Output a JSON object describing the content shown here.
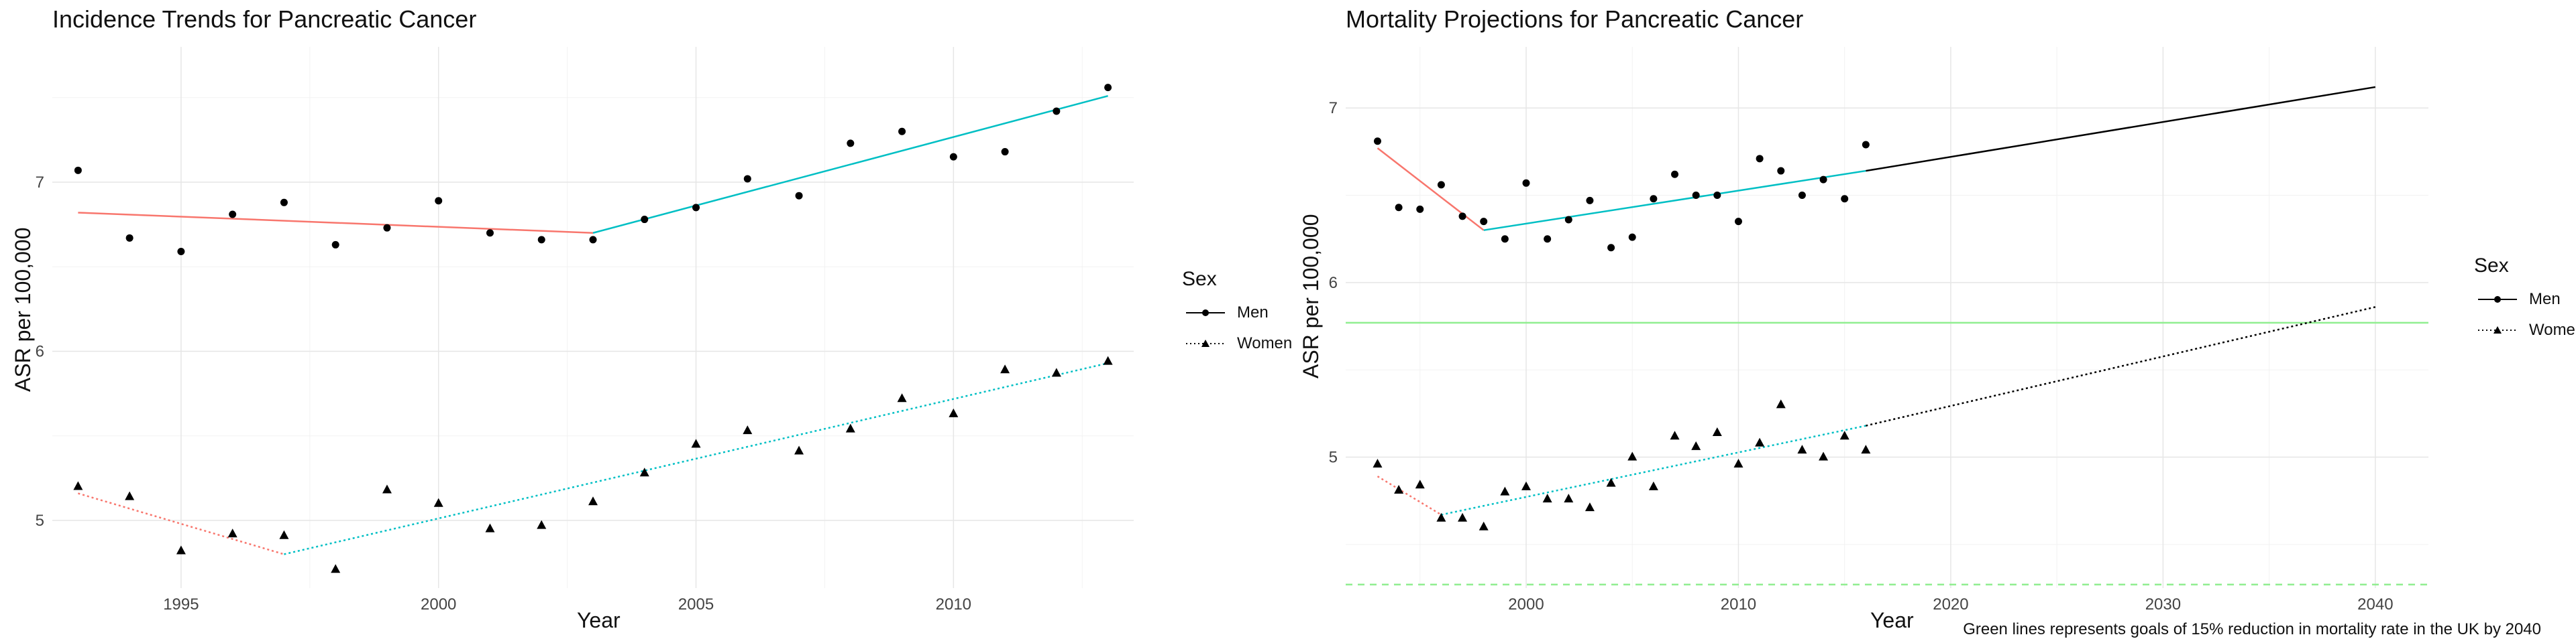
{
  "left": {
    "chart_data": {
      "type": "line",
      "title": "Incidence Trends for Pancreatic Cancer",
      "xlabel": "Year",
      "ylabel": "ASR per 100,000",
      "xlim": [
        1992.5,
        2013.5
      ],
      "ylim": [
        4.6,
        7.8
      ],
      "xticks": [
        1995,
        2000,
        2005,
        2010
      ],
      "yticks": [
        5,
        6,
        7
      ],
      "legend": {
        "title": "Sex",
        "placement": "right",
        "entries": [
          {
            "label": "Men",
            "marker": "circle",
            "dash": "solid"
          },
          {
            "label": "Women",
            "marker": "triangle",
            "dash": "dotted"
          }
        ]
      },
      "series": [
        {
          "name": "Men",
          "marker": "circle",
          "x": [
            1993,
            1994,
            1995,
            1996,
            1997,
            1998,
            1999,
            2000,
            2001,
            2002,
            2003,
            2004,
            2005,
            2006,
            2007,
            2008,
            2009,
            2010,
            2011,
            2012,
            2013
          ],
          "y": [
            7.07,
            6.67,
            6.59,
            6.81,
            6.88,
            6.63,
            6.73,
            6.89,
            6.7,
            6.66,
            6.66,
            6.78,
            6.85,
            7.02,
            6.92,
            7.23,
            7.3,
            7.15,
            7.18,
            7.42,
            7.56
          ]
        },
        {
          "name": "Women",
          "marker": "triangle",
          "x": [
            1993,
            1994,
            1995,
            1996,
            1997,
            1998,
            1999,
            2000,
            2001,
            2002,
            2003,
            2004,
            2005,
            2006,
            2007,
            2008,
            2009,
            2010,
            2011,
            2012,
            2013
          ],
          "y": [
            5.2,
            5.14,
            4.82,
            4.92,
            4.91,
            4.71,
            5.18,
            5.1,
            4.95,
            4.97,
            5.11,
            5.28,
            5.45,
            5.53,
            5.41,
            5.54,
            5.72,
            5.63,
            5.89,
            5.87,
            5.94
          ]
        }
      ],
      "trend_lines": [
        {
          "color": "#F8766D",
          "dash": "solid",
          "x": [
            1993,
            2003
          ],
          "y": [
            6.82,
            6.7
          ]
        },
        {
          "color": "#00BFC4",
          "dash": "solid",
          "x": [
            2003,
            2013
          ],
          "y": [
            6.7,
            7.51
          ]
        },
        {
          "color": "#F8766D",
          "dash": "dotted",
          "x": [
            1993,
            1997
          ],
          "y": [
            5.16,
            4.8
          ]
        },
        {
          "color": "#00BFC4",
          "dash": "dotted",
          "x": [
            1997,
            2013
          ],
          "y": [
            4.8,
            5.93
          ]
        }
      ]
    }
  },
  "right": {
    "chart_data": {
      "type": "line",
      "title": "Mortality Projections for Pancreatic Cancer",
      "xlabel": "Year",
      "ylabel": "ASR per 100,000",
      "xlim": [
        1991.5,
        2042.5
      ],
      "ylim": [
        4.25,
        7.35
      ],
      "xticks": [
        2000,
        2010,
        2020,
        2030,
        2040
      ],
      "yticks": [
        5,
        6,
        7
      ],
      "caption": "Green lines represents goals of 15% reduction in mortality rate in the UK by 2040",
      "legend": {
        "title": "Sex",
        "placement": "right",
        "entries": [
          {
            "label": "Men",
            "marker": "circle",
            "dash": "solid"
          },
          {
            "label": "Women",
            "marker": "triangle",
            "dash": "dotted"
          }
        ]
      },
      "series": [
        {
          "name": "Men",
          "marker": "circle",
          "x": [
            1993,
            1994,
            1995,
            1996,
            1997,
            1998,
            1999,
            2000,
            2001,
            2002,
            2003,
            2004,
            2005,
            2006,
            2007,
            2008,
            2009,
            2010,
            2011,
            2012,
            2013,
            2014,
            2015,
            2016
          ],
          "y": [
            6.81,
            6.43,
            6.42,
            6.56,
            6.38,
            6.35,
            6.25,
            6.57,
            6.25,
            6.36,
            6.47,
            6.2,
            6.26,
            6.48,
            6.62,
            6.5,
            6.5,
            6.35,
            6.71,
            6.64,
            6.5,
            6.59,
            6.48,
            6.79
          ]
        },
        {
          "name": "Women",
          "marker": "triangle",
          "x": [
            1993,
            1994,
            1995,
            1996,
            1997,
            1998,
            1999,
            2000,
            2001,
            2002,
            2003,
            2004,
            2005,
            2006,
            2007,
            2008,
            2009,
            2010,
            2011,
            2012,
            2013,
            2014,
            2015,
            2016
          ],
          "y": [
            4.96,
            4.81,
            4.84,
            4.65,
            4.65,
            4.6,
            4.8,
            4.83,
            4.76,
            4.76,
            4.71,
            4.85,
            5.0,
            4.83,
            5.12,
            5.06,
            5.14,
            4.96,
            5.08,
            5.3,
            5.04,
            5.0,
            5.12,
            5.04
          ]
        }
      ],
      "trend_lines": [
        {
          "color": "#F8766D",
          "dash": "solid",
          "x": [
            1993,
            1998
          ],
          "y": [
            6.77,
            6.3
          ]
        },
        {
          "color": "#00BFC4",
          "dash": "solid",
          "x": [
            1998,
            2016
          ],
          "y": [
            6.3,
            6.64
          ]
        },
        {
          "color": "#000000",
          "dash": "solid",
          "x": [
            2016,
            2040
          ],
          "y": [
            6.64,
            7.12
          ]
        },
        {
          "color": "#F8766D",
          "dash": "dotted",
          "x": [
            1993,
            1996
          ],
          "y": [
            4.89,
            4.67
          ]
        },
        {
          "color": "#00BFC4",
          "dash": "dotted",
          "x": [
            1996,
            2016
          ],
          "y": [
            4.67,
            5.18
          ]
        },
        {
          "color": "#000000",
          "dash": "dotted",
          "x": [
            2016,
            2040
          ],
          "y": [
            5.18,
            5.86
          ]
        }
      ],
      "reference_lines": [
        {
          "color": "#90EE90",
          "dash": "solid",
          "y": 5.77
        },
        {
          "color": "#90EE90",
          "dash": "dashed",
          "y": 4.27
        }
      ]
    }
  }
}
